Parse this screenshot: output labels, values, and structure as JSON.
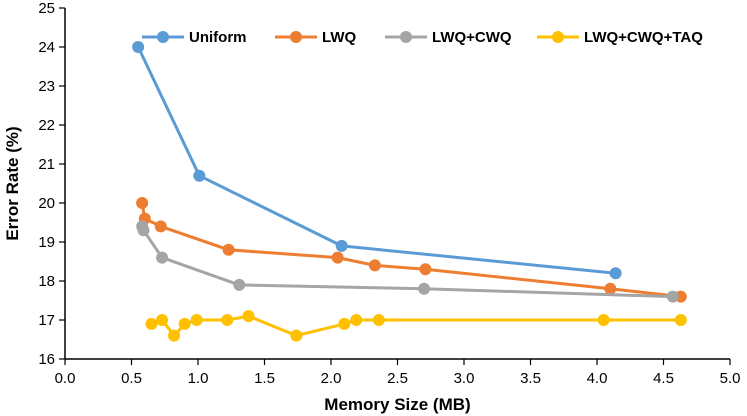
{
  "chart_data": {
    "type": "line",
    "title": "",
    "xlabel": "Memory Size (MB)",
    "ylabel": "Error Rate (%)",
    "xlim": [
      0.0,
      5.0
    ],
    "ylim": [
      16,
      25
    ],
    "x_ticks": [
      0.0,
      0.5,
      1.0,
      1.5,
      2.0,
      2.5,
      3.0,
      3.5,
      4.0,
      4.5,
      5.0
    ],
    "x_tick_labels": [
      "0.0",
      "0.5",
      "1.0",
      "1.5",
      "2.0",
      "2.5",
      "3.0",
      "3.5",
      "4.0",
      "4.5",
      "5.0"
    ],
    "y_ticks": [
      16,
      17,
      18,
      19,
      20,
      21,
      22,
      23,
      24,
      25
    ],
    "y_tick_labels": [
      "16",
      "17",
      "18",
      "19",
      "20",
      "21",
      "22",
      "23",
      "24",
      "25"
    ],
    "grid": false,
    "legend_position": "top",
    "series": [
      {
        "name": "Uniform",
        "color": "#5B9BD5",
        "points": [
          [
            0.55,
            24.0
          ],
          [
            1.01,
            20.7
          ],
          [
            2.08,
            18.9
          ],
          [
            4.14,
            18.2
          ]
        ]
      },
      {
        "name": "LWQ",
        "color": "#ED7D31",
        "points": [
          [
            0.58,
            20.0
          ],
          [
            0.6,
            19.6
          ],
          [
            0.72,
            19.4
          ],
          [
            1.23,
            18.8
          ],
          [
            2.05,
            18.6
          ],
          [
            2.33,
            18.4
          ],
          [
            2.71,
            18.3
          ],
          [
            4.1,
            17.8
          ],
          [
            4.63,
            17.6
          ]
        ]
      },
      {
        "name": "LWQ+CWQ",
        "color": "#A5A5A5",
        "points": [
          [
            0.58,
            19.4
          ],
          [
            0.59,
            19.3
          ],
          [
            0.73,
            18.6
          ],
          [
            1.31,
            17.9
          ],
          [
            2.7,
            17.8
          ],
          [
            4.57,
            17.6
          ]
        ]
      },
      {
        "name": "LWQ+CWQ+TAQ",
        "color": "#FFC000",
        "points": [
          [
            0.65,
            16.9
          ],
          [
            0.73,
            17.0
          ],
          [
            0.82,
            16.6
          ],
          [
            0.9,
            16.9
          ],
          [
            0.99,
            17.0
          ],
          [
            1.22,
            17.0
          ],
          [
            1.38,
            17.1
          ],
          [
            1.74,
            16.6
          ],
          [
            2.1,
            16.9
          ],
          [
            2.19,
            17.0
          ],
          [
            2.36,
            17.0
          ],
          [
            4.05,
            17.0
          ],
          [
            4.63,
            17.0
          ]
        ]
      }
    ]
  }
}
